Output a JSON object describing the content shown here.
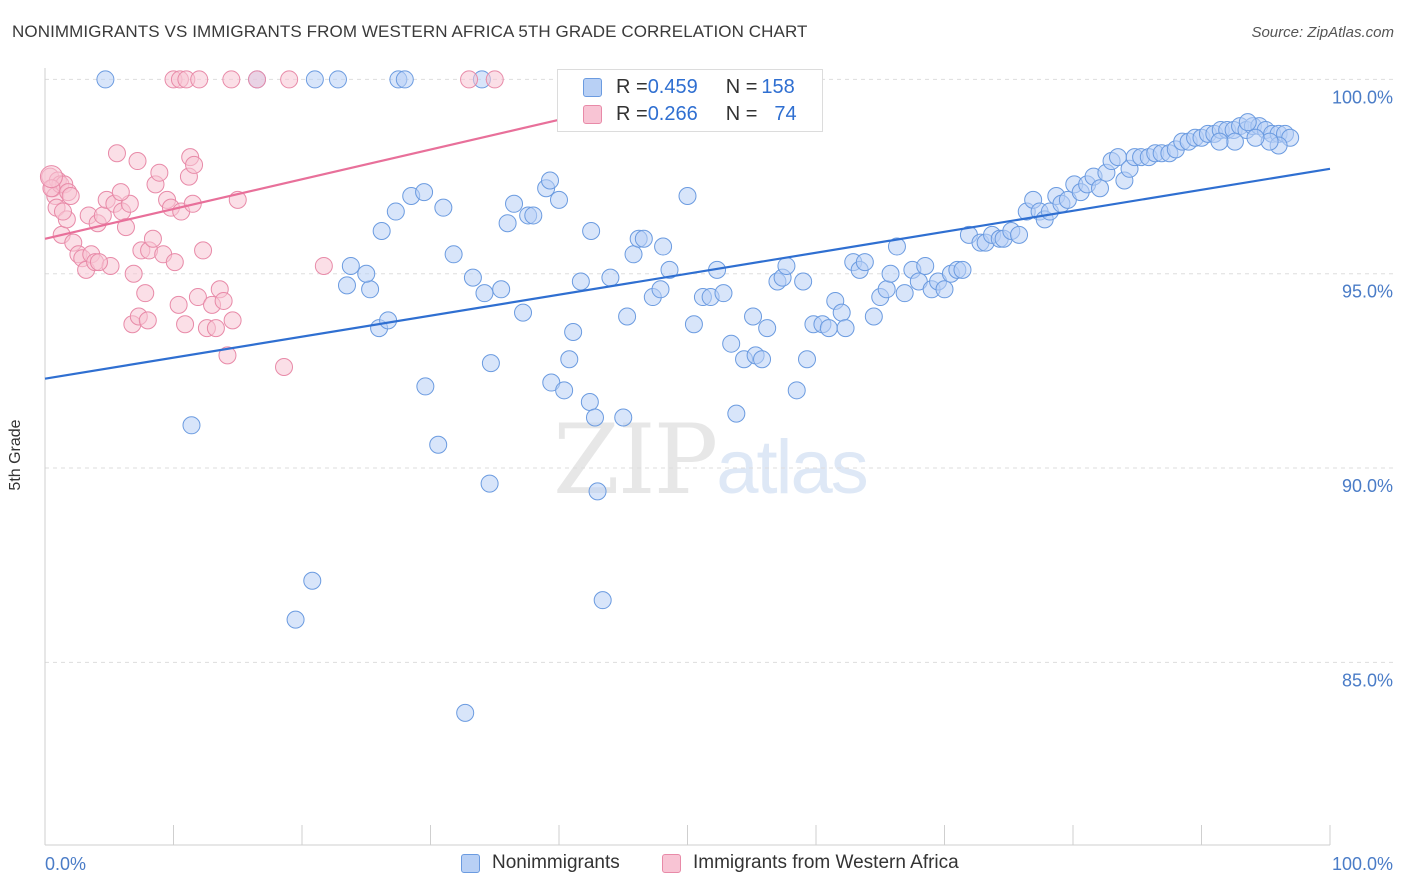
{
  "title": "NONIMMIGRANTS VS IMMIGRANTS FROM WESTERN AFRICA 5TH GRADE CORRELATION CHART",
  "source": "Source: ZipAtlas.com",
  "watermark": {
    "part1": "ZIP",
    "part2": "atlas"
  },
  "colors": {
    "blue": "#2f6fd1",
    "pink": "#e8709a",
    "blue_fill": "#b8d0f5",
    "pink_fill": "#f8c4d4",
    "grid": "#dddddd",
    "axis_text": "#4a7cc7"
  },
  "legend_top": {
    "rows": [
      {
        "r_label": "R = ",
        "r_value": "0.459",
        "n_label": "N = ",
        "n_value": "158"
      },
      {
        "r_label": "R = ",
        "r_value": "0.266",
        "n_label": "N = ",
        "n_value": "74"
      }
    ]
  },
  "legend_bottom": {
    "series1": "Nonimmigrants",
    "series2": "Immigrants from Western Africa"
  },
  "chart_data": {
    "type": "scatter",
    "title": "NONIMMIGRANTS VS IMMIGRANTS FROM WESTERN AFRICA 5TH GRADE CORRELATION CHART",
    "xlabel": "",
    "ylabel": "5th Grade",
    "xlim": [
      0,
      100
    ],
    "ylim": [
      80.3,
      100.5
    ],
    "x_tick_labels": [
      "0.0%",
      "100.0%"
    ],
    "y_ticks": [
      85,
      90,
      95,
      100
    ],
    "y_tick_labels": [
      "85.0%",
      "90.0%",
      "95.0%",
      "100.0%"
    ],
    "grid": true,
    "legend_position": "top-center",
    "series": [
      {
        "name": "Nonimmigrants",
        "color": "#2f6fd1",
        "r": 0.459,
        "n": 158,
        "trendline": {
          "x": [
            0,
            100
          ],
          "y": [
            92.3,
            97.7
          ]
        },
        "points": [
          [
            4.7,
            100
          ],
          [
            16.5,
            100
          ],
          [
            21.0,
            100
          ],
          [
            22.8,
            100
          ],
          [
            27.5,
            100
          ],
          [
            28.0,
            100
          ],
          [
            34.0,
            100
          ],
          [
            11.4,
            91.1
          ],
          [
            19.5,
            86.1
          ],
          [
            20.8,
            87.1
          ],
          [
            23.8,
            95.2
          ],
          [
            23.5,
            94.7
          ],
          [
            25.3,
            94.6
          ],
          [
            25.0,
            95.0
          ],
          [
            26.0,
            93.6
          ],
          [
            26.7,
            93.8
          ],
          [
            26.2,
            96.1
          ],
          [
            27.3,
            96.6
          ],
          [
            28.5,
            97.0
          ],
          [
            29.5,
            97.1
          ],
          [
            29.6,
            92.1
          ],
          [
            30.6,
            90.6
          ],
          [
            31.0,
            96.7
          ],
          [
            31.8,
            95.5
          ],
          [
            32.7,
            83.7
          ],
          [
            33.3,
            94.9
          ],
          [
            34.2,
            94.5
          ],
          [
            34.7,
            92.7
          ],
          [
            34.6,
            89.6
          ],
          [
            35.5,
            94.6
          ],
          [
            36.0,
            96.3
          ],
          [
            36.5,
            96.8
          ],
          [
            37.2,
            94.0
          ],
          [
            37.6,
            96.5
          ],
          [
            38.0,
            96.5
          ],
          [
            39.0,
            97.2
          ],
          [
            39.3,
            97.4
          ],
          [
            39.4,
            92.2
          ],
          [
            40.0,
            96.9
          ],
          [
            40.4,
            92.0
          ],
          [
            40.8,
            92.8
          ],
          [
            41.1,
            93.5
          ],
          [
            41.7,
            94.8
          ],
          [
            42.5,
            96.1
          ],
          [
            42.4,
            91.7
          ],
          [
            42.8,
            91.3
          ],
          [
            43.0,
            89.4
          ],
          [
            43.4,
            86.6
          ],
          [
            44.0,
            94.9
          ],
          [
            45.0,
            91.3
          ],
          [
            45.3,
            93.9
          ],
          [
            45.8,
            95.5
          ],
          [
            46.2,
            95.9
          ],
          [
            46.6,
            95.9
          ],
          [
            47.3,
            94.4
          ],
          [
            47.9,
            94.6
          ],
          [
            48.1,
            95.7
          ],
          [
            48.6,
            95.1
          ],
          [
            50.0,
            97.0
          ],
          [
            50.5,
            93.7
          ],
          [
            51.2,
            94.4
          ],
          [
            51.8,
            94.4
          ],
          [
            52.3,
            95.1
          ],
          [
            52.8,
            94.5
          ],
          [
            53.4,
            93.2
          ],
          [
            53.8,
            91.4
          ],
          [
            54.4,
            92.8
          ],
          [
            55.1,
            93.9
          ],
          [
            55.3,
            92.9
          ],
          [
            55.8,
            92.8
          ],
          [
            56.2,
            93.6
          ],
          [
            57.0,
            94.8
          ],
          [
            57.4,
            94.9
          ],
          [
            57.7,
            95.2
          ],
          [
            58.5,
            92.0
          ],
          [
            59.0,
            94.8
          ],
          [
            59.3,
            92.8
          ],
          [
            59.8,
            93.7
          ],
          [
            60.5,
            93.7
          ],
          [
            61.0,
            93.6
          ],
          [
            61.5,
            94.3
          ],
          [
            62.0,
            94.0
          ],
          [
            62.3,
            93.6
          ],
          [
            62.9,
            95.3
          ],
          [
            63.4,
            95.1
          ],
          [
            63.8,
            95.3
          ],
          [
            64.5,
            93.9
          ],
          [
            65.0,
            94.4
          ],
          [
            65.5,
            94.6
          ],
          [
            65.8,
            95.0
          ],
          [
            66.3,
            95.7
          ],
          [
            66.9,
            94.5
          ],
          [
            67.5,
            95.1
          ],
          [
            68.0,
            94.8
          ],
          [
            68.5,
            95.2
          ],
          [
            69.0,
            94.6
          ],
          [
            69.5,
            94.8
          ],
          [
            70.0,
            94.6
          ],
          [
            70.5,
            95.0
          ],
          [
            71.0,
            95.1
          ],
          [
            71.4,
            95.1
          ],
          [
            71.9,
            96.0
          ],
          [
            72.8,
            95.8
          ],
          [
            73.2,
            95.8
          ],
          [
            73.7,
            96.0
          ],
          [
            74.3,
            95.9
          ],
          [
            74.6,
            95.9
          ],
          [
            75.2,
            96.1
          ],
          [
            75.8,
            96.0
          ],
          [
            76.4,
            96.6
          ],
          [
            76.9,
            96.9
          ],
          [
            77.4,
            96.6
          ],
          [
            77.8,
            96.4
          ],
          [
            78.2,
            96.6
          ],
          [
            78.7,
            97.0
          ],
          [
            79.1,
            96.8
          ],
          [
            79.6,
            96.9
          ],
          [
            80.1,
            97.3
          ],
          [
            80.6,
            97.1
          ],
          [
            81.1,
            97.3
          ],
          [
            81.6,
            97.5
          ],
          [
            82.1,
            97.2
          ],
          [
            82.6,
            97.6
          ],
          [
            83.0,
            97.9
          ],
          [
            83.5,
            98.0
          ],
          [
            84.0,
            97.4
          ],
          [
            84.4,
            97.7
          ],
          [
            84.8,
            98.0
          ],
          [
            85.3,
            98.0
          ],
          [
            85.9,
            98.0
          ],
          [
            86.4,
            98.1
          ],
          [
            86.9,
            98.1
          ],
          [
            87.5,
            98.1
          ],
          [
            88.0,
            98.2
          ],
          [
            88.5,
            98.4
          ],
          [
            89.0,
            98.4
          ],
          [
            89.5,
            98.5
          ],
          [
            90.0,
            98.5
          ],
          [
            90.5,
            98.6
          ],
          [
            91.0,
            98.6
          ],
          [
            91.5,
            98.7
          ],
          [
            92.0,
            98.7
          ],
          [
            92.5,
            98.7
          ],
          [
            93.0,
            98.8
          ],
          [
            93.5,
            98.7
          ],
          [
            94.0,
            98.8
          ],
          [
            94.5,
            98.8
          ],
          [
            95.0,
            98.7
          ],
          [
            95.5,
            98.6
          ],
          [
            96.0,
            98.6
          ],
          [
            96.5,
            98.6
          ],
          [
            96.9,
            98.5
          ],
          [
            96.0,
            98.3
          ],
          [
            95.3,
            98.4
          ],
          [
            94.2,
            98.5
          ],
          [
            93.6,
            98.9
          ],
          [
            92.6,
            98.4
          ],
          [
            91.4,
            98.4
          ]
        ]
      },
      {
        "name": "Immigrants from Western Africa",
        "color": "#e8709a",
        "r": 0.266,
        "n": 74,
        "trendline": {
          "x": [
            0,
            40.5
          ],
          "y": [
            95.9,
            99.0
          ]
        },
        "points": [
          [
            10.0,
            100
          ],
          [
            10.5,
            100
          ],
          [
            11.0,
            100
          ],
          [
            12.0,
            100
          ],
          [
            14.5,
            100
          ],
          [
            16.5,
            100
          ],
          [
            19.0,
            100
          ],
          [
            33.0,
            100
          ],
          [
            35.0,
            100
          ],
          [
            0.4,
            97.5
          ],
          [
            0.6,
            97.2
          ],
          [
            0.8,
            97.0
          ],
          [
            1.0,
            97.4
          ],
          [
            1.2,
            97.3
          ],
          [
            1.5,
            97.3
          ],
          [
            1.8,
            97.1
          ],
          [
            2.0,
            97.0
          ],
          [
            0.5,
            97.2
          ],
          [
            0.9,
            96.7
          ],
          [
            1.3,
            96.0
          ],
          [
            1.7,
            96.4
          ],
          [
            2.2,
            95.8
          ],
          [
            2.6,
            95.5
          ],
          [
            2.9,
            95.4
          ],
          [
            3.2,
            95.1
          ],
          [
            3.4,
            96.5
          ],
          [
            3.6,
            95.5
          ],
          [
            3.9,
            95.3
          ],
          [
            4.1,
            96.3
          ],
          [
            4.5,
            96.5
          ],
          [
            4.8,
            96.9
          ],
          [
            5.1,
            95.2
          ],
          [
            5.4,
            96.8
          ],
          [
            5.6,
            98.1
          ],
          [
            6.0,
            96.6
          ],
          [
            6.3,
            96.2
          ],
          [
            6.6,
            96.8
          ],
          [
            6.9,
            95.0
          ],
          [
            7.2,
            97.9
          ],
          [
            7.5,
            95.6
          ],
          [
            7.8,
            94.5
          ],
          [
            8.1,
            95.6
          ],
          [
            8.4,
            95.9
          ],
          [
            8.6,
            97.3
          ],
          [
            8.9,
            97.6
          ],
          [
            9.2,
            95.5
          ],
          [
            9.5,
            96.9
          ],
          [
            9.8,
            96.7
          ],
          [
            10.1,
            95.3
          ],
          [
            10.4,
            94.2
          ],
          [
            10.6,
            96.6
          ],
          [
            10.9,
            93.7
          ],
          [
            11.2,
            97.5
          ],
          [
            11.5,
            96.8
          ],
          [
            11.9,
            94.4
          ],
          [
            12.3,
            95.6
          ],
          [
            12.6,
            93.6
          ],
          [
            13.0,
            94.2
          ],
          [
            13.3,
            93.6
          ],
          [
            13.6,
            94.6
          ],
          [
            13.9,
            94.3
          ],
          [
            14.2,
            92.9
          ],
          [
            14.6,
            93.8
          ],
          [
            15.0,
            96.9
          ],
          [
            5.9,
            97.1
          ],
          [
            6.8,
            93.7
          ],
          [
            7.3,
            93.9
          ],
          [
            8.0,
            93.8
          ],
          [
            11.3,
            98.0
          ],
          [
            11.6,
            97.8
          ],
          [
            21.7,
            95.2
          ],
          [
            18.6,
            92.6
          ],
          [
            1.4,
            96.6
          ],
          [
            4.2,
            95.3
          ]
        ]
      }
    ]
  }
}
